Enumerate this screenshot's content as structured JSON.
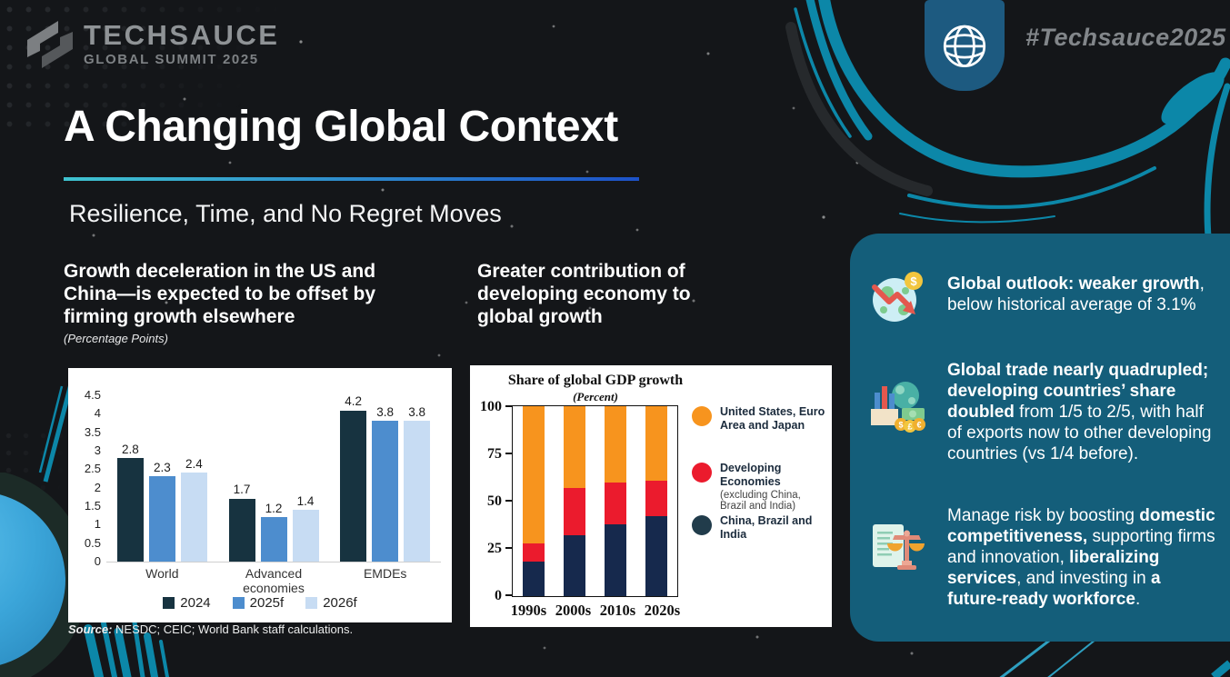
{
  "slide": {
    "logo": {
      "brand": "TECHSAUCE",
      "event": "GLOBAL SUMMIT 2025"
    },
    "hashtag": "#Techsauce2025",
    "title": "A Changing Global Context",
    "subtitle": "Resilience, Time, and No Regret Moves"
  },
  "left_panel": {
    "heading": "Growth deceleration in the US and\nChina—is expected to be offset by\nfirming growth elsewhere",
    "unit": "(Percentage Points)",
    "source_segments": [
      {
        "t": "Source:",
        "b": true,
        "i": true
      },
      {
        "t": " NESDC; CEIC; World Bank staff calculations.",
        "b": false,
        "i": false
      }
    ]
  },
  "middle_panel": {
    "heading": "Greater contribution of\ndeveloping economy to\nglobal growth"
  },
  "chart_data": [
    {
      "type": "bar",
      "title": "Growth deceleration in the US and China—is expected to be offset by firming growth elsewhere",
      "unit": "(Percentage Points)",
      "categories": [
        "World",
        "Advanced economies",
        "EMDEs"
      ],
      "series": [
        {
          "name": "2024",
          "color": "#173340",
          "values": [
            2.8,
            1.7,
            4.2
          ]
        },
        {
          "name": "2025f",
          "color": "#4D8DCE",
          "values": [
            2.3,
            1.2,
            3.8
          ]
        },
        {
          "name": "2026f",
          "color": "#C7DCF3",
          "values": [
            2.4,
            1.4,
            3.8
          ]
        }
      ],
      "ylim": [
        0,
        4.5
      ],
      "yticks": [
        0,
        0.5,
        1,
        1.5,
        2,
        2.5,
        3,
        3.5,
        4,
        4.5
      ],
      "grid": false,
      "legend_position": "bottom",
      "source": "Source: NESDC; CEIC; World Bank staff calculations."
    },
    {
      "type": "bar-stacked",
      "title": "Share of global GDP growth",
      "unit": "(Percent)",
      "categories": [
        "1990s",
        "2000s",
        "2010s",
        "2020s"
      ],
      "series": [
        {
          "name": "China, Brazil and India",
          "color": "#16294D",
          "values": [
            18,
            32,
            38,
            42
          ]
        },
        {
          "name": "Developing Economies (excluding China, Brazil and India)",
          "color": "#EB1B2D",
          "values": [
            10,
            25,
            22,
            19
          ]
        },
        {
          "name": "United States, Euro Area and Japan",
          "color": "#F7941E",
          "values": [
            72,
            43,
            40,
            39
          ]
        }
      ],
      "ylim": [
        0,
        100
      ],
      "yticks": [
        0,
        25,
        50,
        75,
        100
      ],
      "grid": false,
      "legend_position": "right",
      "legend": [
        {
          "name": "United States, Euro Area and Japan",
          "sub": "",
          "color": "#F7941E"
        },
        {
          "name": "Developing Economies",
          "sub": "(excluding China, Brazil and India)",
          "color": "#EB1B2D"
        },
        {
          "name": "China, Brazil and India",
          "sub": "",
          "color": "#213C4B"
        }
      ]
    }
  ],
  "sidebar": {
    "bullets": [
      {
        "icon": "globe-decline-icon",
        "segments": [
          {
            "t": "Global outlook: weaker growth",
            "b": true
          },
          {
            "t": ", below historical average of 3.1%",
            "b": false
          }
        ]
      },
      {
        "icon": "trade-money-icon",
        "segments": [
          {
            "t": "Global trade nearly quadrupled; developing countries’ share doubled",
            "b": true
          },
          {
            "t": " from 1/5 to 2/5, with half of exports now to other developing countries (vs 1/4 before).",
            "b": false
          }
        ]
      },
      {
        "icon": "scales-document-icon",
        "segments": [
          {
            "t": "Manage risk by boosting ",
            "b": false
          },
          {
            "t": "domestic competitiveness,",
            "b": true
          },
          {
            "t": " supporting firms and innovation, ",
            "b": false
          },
          {
            "t": "liberalizing services",
            "b": true
          },
          {
            "t": ", and investing in ",
            "b": false
          },
          {
            "t": "a future-ready workforce",
            "b": true
          },
          {
            "t": ".",
            "b": false
          }
        ]
      }
    ]
  },
  "colors": {
    "background": "#141619",
    "accent_teal": "#0C87A8",
    "panel_teal": "#145E7A",
    "badge_blue": "#1D5A80",
    "underline_start": "#3FC3CF",
    "underline_end": "#1D52C8"
  }
}
